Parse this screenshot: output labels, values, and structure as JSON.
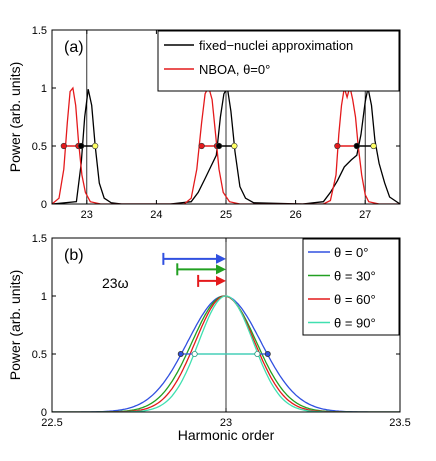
{
  "chart_data": [
    {
      "panel_label": "(a)",
      "type": "line",
      "ylabel": "Power (arb. units)",
      "xlim": [
        22.5,
        27.5
      ],
      "ylim": [
        0,
        1.5
      ],
      "xticks": [
        "23",
        "24",
        "25",
        "26",
        "27"
      ],
      "yticks": [
        "0",
        "0.5",
        "1",
        "1.5"
      ],
      "legend_position": "top-right",
      "vlines": [
        23,
        25,
        27
      ],
      "series": [
        {
          "name": "fixed−nuclei approximation",
          "color": "#000000",
          "x": [
            22.5,
            22.85,
            22.92,
            22.97,
            23.02,
            23.07,
            23.12,
            23.18,
            23.25,
            23.35,
            23.5,
            24.2,
            24.5,
            24.6,
            24.7,
            24.78,
            24.86,
            24.92,
            24.97,
            25.02,
            25.07,
            25.13,
            25.2,
            25.28,
            25.4,
            26.1,
            26.4,
            26.5,
            26.6,
            26.7,
            26.8,
            26.88,
            26.94,
            27.0,
            27.04,
            27.09,
            27.14,
            27.2,
            27.28,
            27.35,
            27.5
          ],
          "y": [
            0,
            0.02,
            0.35,
            0.75,
            0.99,
            0.85,
            0.5,
            0.18,
            0.05,
            0.01,
            0,
            0,
            0.02,
            0.1,
            0.22,
            0.32,
            0.42,
            0.75,
            0.95,
            1.0,
            0.8,
            0.45,
            0.15,
            0.05,
            0.01,
            0,
            0.02,
            0.1,
            0.2,
            0.32,
            0.38,
            0.42,
            0.6,
            0.88,
            1.0,
            0.85,
            0.55,
            0.35,
            0.18,
            0.06,
            0
          ]
        },
        {
          "name": "NBOA, θ=0°",
          "color": "#e41a1c",
          "x": [
            22.5,
            22.6,
            22.67,
            22.72,
            22.76,
            22.8,
            22.84,
            22.88,
            22.93,
            22.98,
            23.05,
            23.2,
            24.4,
            24.5,
            24.58,
            24.65,
            24.7,
            24.75,
            24.8,
            24.85,
            24.9,
            24.96,
            25.05,
            25.2,
            26.4,
            26.5,
            26.58,
            26.62,
            26.66,
            26.7,
            26.74,
            26.78,
            26.82,
            26.86,
            26.9,
            26.95,
            27.0,
            27.05,
            27.2,
            27.5
          ],
          "y": [
            0,
            0.05,
            0.3,
            0.7,
            0.97,
            1.0,
            0.85,
            0.55,
            0.25,
            0.1,
            0.02,
            0,
            0,
            0.05,
            0.3,
            0.7,
            0.95,
            1.01,
            0.9,
            0.6,
            0.3,
            0.1,
            0.02,
            0,
            0,
            0.03,
            0.25,
            0.6,
            0.85,
            1.0,
            0.92,
            1.01,
            0.9,
            0.75,
            0.5,
            0.25,
            0.08,
            0.02,
            0,
            0
          ]
        }
      ],
      "fwhm_markers": [
        {
          "x1": 22.67,
          "x2": 22.88,
          "color": "#e41a1c"
        },
        {
          "x1": 22.92,
          "x2": 23.12,
          "color": "#000000"
        },
        {
          "x1": 24.65,
          "x2": 24.87,
          "color": "#e41a1c"
        },
        {
          "x1": 24.9,
          "x2": 25.12,
          "color": "#000000"
        },
        {
          "x1": 26.6,
          "x2": 26.88,
          "color": "#e41a1c"
        },
        {
          "x1": 26.88,
          "x2": 27.12,
          "color": "#000000"
        }
      ]
    },
    {
      "panel_label": "(b)",
      "type": "line",
      "xlabel": "Harmonic order",
      "ylabel": "Power (arb. units)",
      "annotation": "23ω",
      "xlim": [
        22.5,
        23.5
      ],
      "ylim": [
        0,
        1.5
      ],
      "xticks": [
        "22.5",
        "23",
        "23.5"
      ],
      "yticks": [
        "0",
        "0.5",
        "1",
        "1.5"
      ],
      "legend_position": "top-right",
      "vline": 23,
      "series": [
        {
          "name": "θ = 0°",
          "color": "#3050e0",
          "center": 22.995,
          "sigma": 0.105
        },
        {
          "name": "θ = 30°",
          "color": "#22a022",
          "center": 22.995,
          "sigma": 0.092
        },
        {
          "name": "θ = 60°",
          "color": "#e41a1c",
          "center": 22.997,
          "sigma": 0.085
        },
        {
          "name": "θ = 90°",
          "color": "#40e0b0",
          "center": 23.0,
          "sigma": 0.078
        }
      ],
      "shift_arrows": [
        {
          "color": "#3050e0",
          "from": 22.82,
          "to": 23.0,
          "y": 1.32
        },
        {
          "color": "#22a022",
          "from": 22.86,
          "to": 23.0,
          "y": 1.23
        },
        {
          "color": "#e41a1c",
          "from": 22.92,
          "to": 23.0,
          "y": 1.13
        }
      ],
      "fwhm_markers": [
        {
          "x1": 22.87,
          "x2": 23.12,
          "color": "#3050e0"
        },
        {
          "x1": 22.91,
          "x2": 23.09,
          "color": "#40e0b0"
        }
      ]
    }
  ],
  "text": {
    "a_panel": "(a)",
    "b_panel": "(b)",
    "a_ylabel": "Power (arb. units)",
    "b_ylabel": "Power (arb. units)",
    "b_xlabel": "Harmonic order",
    "b_annotation": "23ω"
  }
}
